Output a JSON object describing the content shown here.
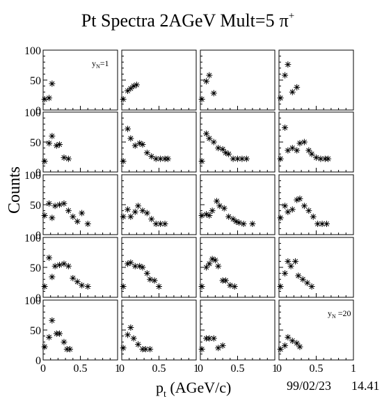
{
  "title": "Pt Spectra 2AGeV Mult=5",
  "title_symbol": "π",
  "title_charge": "+",
  "ylabel": "Counts",
  "xlabel_main": "p",
  "xlabel_sub": "t",
  "xlabel_rest": " (AGeV/c)",
  "date": "99/02/23",
  "time": "14.41",
  "y_tick_labels": [
    "0",
    "50",
    "100"
  ],
  "x_tick_labels": [
    "0",
    "0.5",
    "1"
  ],
  "panel_labels": [
    {
      "panel": 1,
      "main": "y",
      "sub": "N",
      "rest": "=1"
    },
    {
      "panel": 20,
      "main": "y",
      "sub": "N",
      "rest": " =20"
    }
  ],
  "chart_data": {
    "type": "scatter",
    "layout": "5 rows x 4 columns of panels, panel 1 top-left to panel 20 bottom-right",
    "marker": "asterisk",
    "xlim": [
      0,
      1
    ],
    "ylim": [
      0,
      100
    ],
    "grid": false,
    "panels": [
      {
        "panel": 1,
        "x": [
          0.02,
          0.08,
          0.12
        ],
        "y": [
          18,
          20,
          44
        ]
      },
      {
        "panel": 2,
        "x": [
          0.02,
          0.08,
          0.12,
          0.16,
          0.2
        ],
        "y": [
          18,
          32,
          36,
          40,
          42
        ]
      },
      {
        "panel": 3,
        "x": [
          0.02,
          0.08,
          0.12,
          0.18
        ],
        "y": [
          18,
          48,
          58,
          28
        ]
      },
      {
        "panel": 4,
        "x": [
          0.02,
          0.08,
          0.12,
          0.18,
          0.24
        ],
        "y": [
          20,
          58,
          76,
          30,
          38
        ]
      },
      {
        "panel": 5,
        "x": [
          0.02,
          0.08,
          0.12,
          0.18,
          0.22,
          0.28,
          0.34
        ],
        "y": [
          18,
          48,
          60,
          44,
          46,
          24,
          22
        ]
      },
      {
        "panel": 6,
        "x": [
          0.02,
          0.08,
          0.12,
          0.18,
          0.24,
          0.28,
          0.34,
          0.4,
          0.46,
          0.52,
          0.58,
          0.62
        ],
        "y": [
          18,
          72,
          56,
          44,
          48,
          46,
          32,
          26,
          22,
          22,
          22,
          22
        ]
      },
      {
        "panel": 7,
        "x": [
          0.02,
          0.08,
          0.12,
          0.18,
          0.24,
          0.3,
          0.34,
          0.38,
          0.44,
          0.5,
          0.56,
          0.62
        ],
        "y": [
          18,
          64,
          56,
          50,
          40,
          38,
          32,
          30,
          22,
          22,
          22,
          22
        ]
      },
      {
        "panel": 8,
        "x": [
          0.02,
          0.08,
          0.12,
          0.18,
          0.24,
          0.28,
          0.34,
          0.4,
          0.44,
          0.5,
          0.56,
          0.62,
          0.66
        ],
        "y": [
          22,
          74,
          36,
          40,
          36,
          48,
          50,
          36,
          30,
          24,
          22,
          22,
          22
        ]
      },
      {
        "panel": 9,
        "x": [
          0.02,
          0.08,
          0.12,
          0.16,
          0.22,
          0.28,
          0.34,
          0.4,
          0.46,
          0.52,
          0.6
        ],
        "y": [
          32,
          52,
          28,
          48,
          50,
          52,
          40,
          30,
          22,
          36,
          18
        ]
      },
      {
        "panel": 10,
        "x": [
          0.02,
          0.08,
          0.12,
          0.18,
          0.22,
          0.28,
          0.34,
          0.4,
          0.46,
          0.52,
          0.58
        ],
        "y": [
          30,
          42,
          30,
          38,
          48,
          40,
          36,
          26,
          18,
          18,
          18
        ]
      },
      {
        "panel": 11,
        "x": [
          0.02,
          0.08,
          0.12,
          0.16,
          0.22,
          0.26,
          0.32,
          0.38,
          0.44,
          0.48,
          0.52,
          0.58,
          0.7
        ],
        "y": [
          32,
          34,
          32,
          40,
          56,
          48,
          44,
          30,
          26,
          22,
          20,
          18,
          18
        ]
      },
      {
        "panel": 12,
        "x": [
          0.02,
          0.08,
          0.12,
          0.18,
          0.24,
          0.28,
          0.34,
          0.4,
          0.46,
          0.52,
          0.58,
          0.64
        ],
        "y": [
          28,
          48,
          38,
          42,
          58,
          60,
          48,
          40,
          30,
          18,
          18,
          18
        ]
      },
      {
        "panel": 13,
        "x": [
          0.02,
          0.08,
          0.12,
          0.16,
          0.22,
          0.28,
          0.34,
          0.4,
          0.46,
          0.52,
          0.6
        ],
        "y": [
          18,
          66,
          34,
          52,
          54,
          56,
          52,
          32,
          26,
          20,
          18
        ]
      },
      {
        "panel": 14,
        "x": [
          0.02,
          0.08,
          0.12,
          0.18,
          0.24,
          0.28,
          0.34,
          0.38,
          0.44,
          0.5
        ],
        "y": [
          18,
          56,
          58,
          52,
          52,
          50,
          40,
          30,
          28,
          18
        ]
      },
      {
        "panel": 15,
        "x": [
          0.02,
          0.08,
          0.12,
          0.16,
          0.2,
          0.24,
          0.3,
          0.34,
          0.4,
          0.46
        ],
        "y": [
          18,
          50,
          56,
          64,
          62,
          52,
          28,
          28,
          20,
          18
        ]
      },
      {
        "panel": 16,
        "x": [
          0.02,
          0.08,
          0.12,
          0.16,
          0.22,
          0.26,
          0.32,
          0.38,
          0.44
        ],
        "y": [
          18,
          40,
          60,
          52,
          60,
          36,
          30,
          24,
          18
        ]
      },
      {
        "panel": 17,
        "x": [
          0.02,
          0.08,
          0.12,
          0.18,
          0.22,
          0.28,
          0.32,
          0.36
        ],
        "y": [
          22,
          38,
          66,
          44,
          44,
          30,
          18,
          18
        ]
      },
      {
        "panel": 18,
        "x": [
          0.02,
          0.08,
          0.12,
          0.16,
          0.22,
          0.28,
          0.32,
          0.38
        ],
        "y": [
          20,
          42,
          54,
          36,
          26,
          18,
          18,
          18
        ]
      },
      {
        "panel": 19,
        "x": [
          0.02,
          0.08,
          0.12,
          0.18,
          0.24,
          0.3
        ],
        "y": [
          18,
          36,
          36,
          36,
          20,
          24
        ]
      },
      {
        "panel": 20,
        "x": [
          0.02,
          0.08,
          0.12,
          0.18,
          0.24,
          0.28
        ],
        "y": [
          18,
          24,
          38,
          32,
          28,
          22
        ]
      }
    ]
  }
}
